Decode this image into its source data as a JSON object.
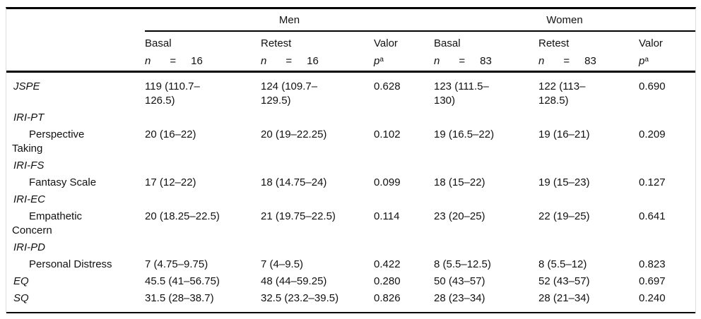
{
  "table": {
    "header": {
      "groups": [
        {
          "label": "Men"
        },
        {
          "label": "Women"
        }
      ],
      "columns": [
        {
          "title": "Basal",
          "stat": {
            "var": "n",
            "eq": "=",
            "val": "16"
          }
        },
        {
          "title": "Retest",
          "stat": {
            "var": "n",
            "eq": "=",
            "val": "16"
          }
        },
        {
          "title": "Valor",
          "stat": {
            "var": "p",
            "sup": "a"
          }
        },
        {
          "title": "Basal",
          "stat": {
            "var": "n",
            "eq": "=",
            "val": "83"
          }
        },
        {
          "title": "Retest",
          "stat": {
            "var": "n",
            "eq": "=",
            "val": "83"
          }
        },
        {
          "title": "Valor",
          "stat": {
            "var": "p",
            "sup": "a"
          }
        }
      ]
    },
    "rows": [
      {
        "label": "JSPE",
        "cells": [
          "119 (110.7–\n126.5)",
          "124 (109.7–\n129.5)",
          "0.628",
          "123 (111.5–\n130)",
          "122 (113–\n128.5)",
          "0.690"
        ]
      },
      {
        "label": "IRI-PT",
        "cells": [
          "",
          "",
          "",
          "",
          "",
          ""
        ]
      },
      {
        "label": "Perspective\nTaking",
        "cells": [
          "20 (16–22)",
          "20 (19–22.25)",
          "0.102",
          "19 (16.5–22)",
          "19 (16–21)",
          "0.209"
        ]
      },
      {
        "label": "IRI-FS",
        "cells": [
          "",
          "",
          "",
          "",
          "",
          ""
        ]
      },
      {
        "label": "Fantasy Scale",
        "cells": [
          "17 (12–22)",
          "18 (14.75–24)",
          "0.099",
          "18 (15–22)",
          "19 (15–23)",
          "0.127"
        ]
      },
      {
        "label": "IRI-EC",
        "cells": [
          "",
          "",
          "",
          "",
          "",
          ""
        ]
      },
      {
        "label": "Empathetic\nConcern",
        "cells": [
          "20 (18.25–22.5)",
          "21 (19.75–22.5)",
          "0.114",
          "23 (20–25)",
          "22 (19–25)",
          "0.641"
        ]
      },
      {
        "label": "IRI-PD",
        "cells": [
          "",
          "",
          "",
          "",
          "",
          ""
        ]
      },
      {
        "label": "Personal Distress",
        "cells": [
          "7 (4.75–9.75)",
          "7 (4–9.5)",
          "0.422",
          "8 (5.5–12.5)",
          "8 (5.5–12)",
          "0.823"
        ]
      },
      {
        "label": "EQ",
        "cells": [
          "45.5 (41–56.75)",
          "48 (44–59.25)",
          "0.280",
          "50 (43–57)",
          "52 (43–57)",
          "0.697"
        ]
      },
      {
        "label": "SQ",
        "cells": [
          "31.5 (28–38.7)",
          "32.5 (23.2–39.5)",
          "0.826",
          "28 (23–34)",
          "28 (21–34)",
          "0.240"
        ]
      }
    ]
  }
}
